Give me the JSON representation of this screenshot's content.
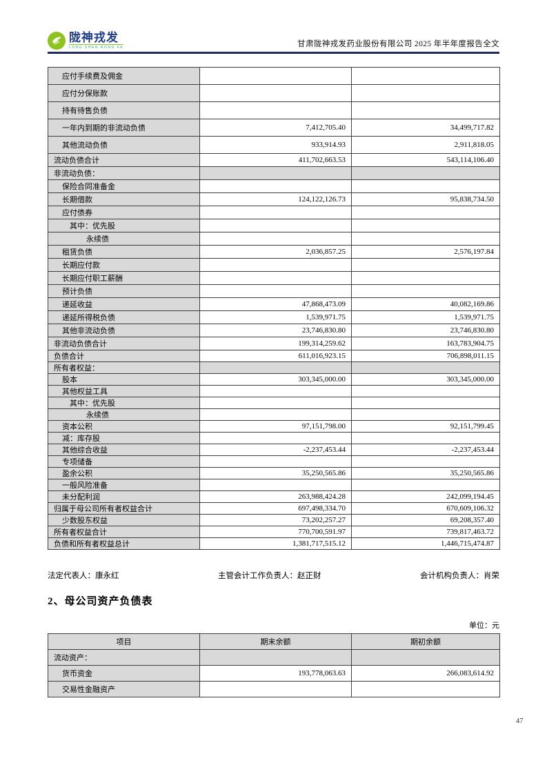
{
  "header": {
    "logo_name": "陇神戎发",
    "logo_subtitle": "LONG SHEN RONG FA",
    "report_title": "甘肃陇神戎发药业股份有限公司 2025 年半年度报告全文"
  },
  "colors": {
    "brand_green": "#8dc21f",
    "brand_navy": "#1f3c87",
    "header_rule": "#20295c",
    "cell_gray": "#d9d9d9"
  },
  "balance_sheet_continued": {
    "rows": [
      {
        "label": "应付手续费及佣金",
        "indent": 1,
        "end": "",
        "begin": "",
        "section": false
      },
      {
        "label": "应付分保账款",
        "indent": 1,
        "end": "",
        "begin": "",
        "section": false
      },
      {
        "label": "持有待售负债",
        "indent": 1,
        "end": "",
        "begin": "",
        "section": false
      },
      {
        "label": "一年内到期的非流动负债",
        "indent": 1,
        "end": "7,412,705.40",
        "begin": "34,499,717.82",
        "section": false
      },
      {
        "label": "其他流动负债",
        "indent": 1,
        "end": "933,914.93",
        "begin": "2,911,818.05",
        "section": false
      },
      {
        "label": "流动负债合计",
        "indent": 0,
        "end": "411,702,663.53",
        "begin": "543,114,106.40",
        "section": false
      },
      {
        "label": "非流动负债：",
        "indent": 0,
        "end": "",
        "begin": "",
        "section": true
      },
      {
        "label": "保险合同准备金",
        "indent": 1,
        "end": "",
        "begin": "",
        "section": false
      },
      {
        "label": "长期借款",
        "indent": 1,
        "end": "124,122,126.73",
        "begin": "95,838,734.50",
        "section": false
      },
      {
        "label": "应付债券",
        "indent": 1,
        "end": "",
        "begin": "",
        "section": false
      },
      {
        "label": "其中：优先股",
        "indent": 2,
        "end": "",
        "begin": "",
        "section": false
      },
      {
        "label": "永续债",
        "indent": 3,
        "end": "",
        "begin": "",
        "section": false
      },
      {
        "label": "租赁负债",
        "indent": 1,
        "end": "2,036,857.25",
        "begin": "2,576,197.84",
        "section": false
      },
      {
        "label": "长期应付款",
        "indent": 1,
        "end": "",
        "begin": "",
        "section": false
      },
      {
        "label": "长期应付职工薪酬",
        "indent": 1,
        "end": "",
        "begin": "",
        "section": false
      },
      {
        "label": "预计负债",
        "indent": 1,
        "end": "",
        "begin": "",
        "section": false
      },
      {
        "label": "递延收益",
        "indent": 1,
        "end": "47,868,473.09",
        "begin": "40,082,169.86",
        "section": false
      },
      {
        "label": "递延所得税负债",
        "indent": 1,
        "end": "1,539,971.75",
        "begin": "1,539,971.75",
        "section": false
      },
      {
        "label": "其他非流动负债",
        "indent": 1,
        "end": "23,746,830.80",
        "begin": "23,746,830.80",
        "section": false
      },
      {
        "label": "非流动负债合计",
        "indent": 0,
        "end": "199,314,259.62",
        "begin": "163,783,904.75",
        "section": false
      },
      {
        "label": "负债合计",
        "indent": 0,
        "end": "611,016,923.15",
        "begin": "706,898,011.15",
        "section": false
      },
      {
        "label": "所有者权益：",
        "indent": 0,
        "end": "",
        "begin": "",
        "section": true
      },
      {
        "label": "股本",
        "indent": 1,
        "end": "303,345,000.00",
        "begin": "303,345,000.00",
        "section": false
      },
      {
        "label": "其他权益工具",
        "indent": 1,
        "end": "",
        "begin": "",
        "section": false
      },
      {
        "label": "其中：优先股",
        "indent": 2,
        "end": "",
        "begin": "",
        "section": false
      },
      {
        "label": "永续债",
        "indent": 3,
        "end": "",
        "begin": "",
        "section": false
      },
      {
        "label": "资本公积",
        "indent": 1,
        "end": "97,151,798.00",
        "begin": "92,151,799.45",
        "section": false
      },
      {
        "label": "减：库存股",
        "indent": 1,
        "end": "",
        "begin": "",
        "section": false
      },
      {
        "label": "其他综合收益",
        "indent": 1,
        "end": "-2,237,453.44",
        "begin": "-2,237,453.44",
        "section": false
      },
      {
        "label": "专项储备",
        "indent": 1,
        "end": "",
        "begin": "",
        "section": false
      },
      {
        "label": "盈余公积",
        "indent": 1,
        "end": "35,250,565.86",
        "begin": "35,250,565.86",
        "section": false
      },
      {
        "label": "一般风险准备",
        "indent": 1,
        "end": "",
        "begin": "",
        "section": false
      },
      {
        "label": "未分配利润",
        "indent": 1,
        "end": "263,988,424.28",
        "begin": "242,099,194.45",
        "section": false
      },
      {
        "label": "归属于母公司所有者权益合计",
        "indent": 0,
        "end": "697,498,334.70",
        "begin": "670,609,106.32",
        "section": false
      },
      {
        "label": "少数股东权益",
        "indent": 1,
        "end": "73,202,257.27",
        "begin": "69,208,357.40",
        "section": false
      },
      {
        "label": "所有者权益合计",
        "indent": 0,
        "end": "770,700,591.97",
        "begin": "739,817,463.72",
        "section": false
      },
      {
        "label": "负债和所有者权益总计",
        "indent": 0,
        "end": "1,381,717,515.12",
        "begin": "1,446,715,474.87",
        "section": false
      }
    ]
  },
  "signatures": {
    "legal_rep": "法定代表人：康永红",
    "accounting_head": "主管会计工作负责人：赵正财",
    "accounting_org": "会计机构负责人：肖荣"
  },
  "section2": {
    "title": "2、母公司资产负债表",
    "unit": "单位：元",
    "table": {
      "headers": [
        "项目",
        "期末余额",
        "期初余额"
      ],
      "rows": [
        {
          "label": "流动资产：",
          "indent": 0,
          "end": "",
          "begin": "",
          "section": true
        },
        {
          "label": "货币资金",
          "indent": 1,
          "end": "193,778,063.63",
          "begin": "266,083,614.92",
          "section": false
        },
        {
          "label": "交易性金融资产",
          "indent": 1,
          "end": "",
          "begin": "",
          "section": false
        }
      ]
    }
  },
  "page_number": "47"
}
